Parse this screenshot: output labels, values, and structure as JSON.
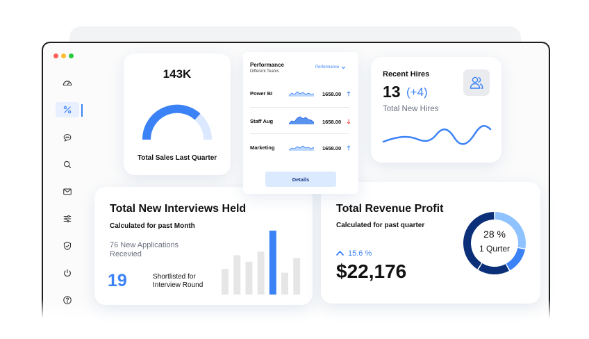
{
  "window": {
    "dot_colors": [
      "#ff5f57",
      "#febc2e",
      "#28c840"
    ]
  },
  "sidebar": {
    "icons": [
      "gauge-icon",
      "percent-icon",
      "chat-icon",
      "search-icon",
      "mail-icon",
      "sliders-icon",
      "shield-icon",
      "power-icon",
      "help-icon"
    ],
    "active_index": 1
  },
  "sales_card": {
    "value": "143K",
    "label": "Total Sales Last Quarter"
  },
  "performance_card": {
    "title": "Performance",
    "subtitle": "Different Teams",
    "dropdown_label": "Performance",
    "rows": [
      {
        "name": "Power BI",
        "value": "1658.00",
        "trend": "up"
      },
      {
        "name": "Staff Aug",
        "value": "1658.00",
        "trend": "down"
      },
      {
        "name": "Marketing",
        "value": "1658.00",
        "trend": "up"
      }
    ],
    "details_label": "Details"
  },
  "hires_card": {
    "title": "Recent Hires",
    "count": "13",
    "change": "(+4)",
    "label": "Total New Hires"
  },
  "interviews_card": {
    "title": "Total New Interviews Held",
    "subtitle": "Calculated for past Month",
    "applications_line1": "76 New Applications",
    "applications_line2": "Recevied",
    "shortlisted_count": "19",
    "shortlisted_line1": "Shortlisted for",
    "shortlisted_line2": "Interview Round"
  },
  "revenue_card": {
    "title": "Total Revenue Profit",
    "subtitle": "Calculated for past quarter",
    "change": "15.6 %",
    "amount": "$22,176",
    "donut_percent": "28 %",
    "donut_label": "1 Qurter"
  },
  "chart_data": [
    {
      "type": "bar",
      "values": [
        28,
        43,
        36,
        47,
        70,
        24,
        40
      ],
      "highlight_index": 4,
      "colors": {
        "bar": "#e6e6e6",
        "highlight": "#3b82f6"
      }
    },
    {
      "type": "pie",
      "values": [
        28,
        14,
        17,
        41
      ],
      "colors": [
        "#8ec3ff",
        "#3b82f6",
        "#0b2f78",
        "#0b2f78"
      ]
    }
  ],
  "colors": {
    "accent": "#3b82f6",
    "accent_light": "#dbe8ff",
    "navy": "#0b2f78",
    "trend_up": "#3b82f6",
    "trend_down": "#ef4444"
  }
}
